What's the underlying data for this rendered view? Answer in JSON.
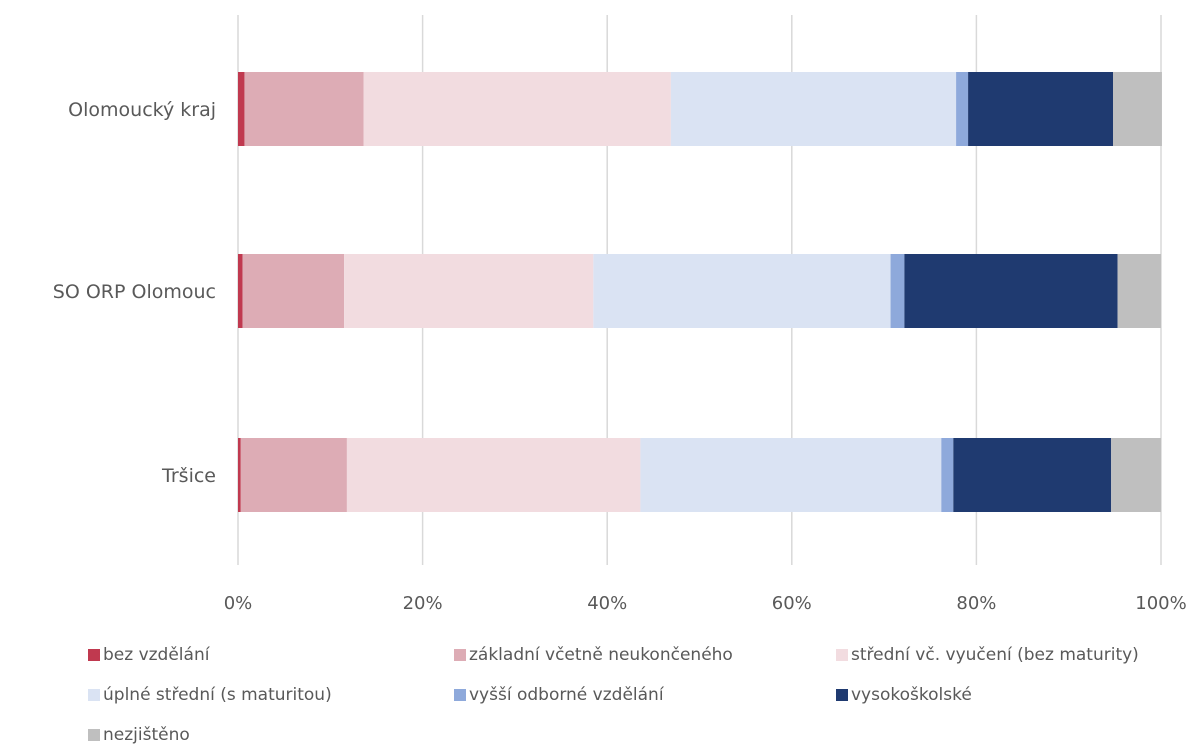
{
  "chart_data": {
    "type": "bar",
    "orientation": "horizontal",
    "stacked": "percent",
    "categories": [
      "Olomoucký kraj",
      "SO ORP Olomouc",
      "Tršice"
    ],
    "series": [
      {
        "name": "bez vzdělání",
        "color": "#C0394F",
        "values": [
          0.7,
          0.5,
          0.3
        ]
      },
      {
        "name": "základní včetně neukončeného",
        "color": "#DDACB5",
        "values": [
          12.9,
          11.0,
          11.5
        ]
      },
      {
        "name": "střední vč. vyučení (bez maturity)",
        "color": "#F2DCE0",
        "values": [
          33.3,
          27.0,
          31.8
        ]
      },
      {
        "name": "úplné střední (s maturitou)",
        "color": "#DAE3F3",
        "values": [
          30.9,
          32.2,
          32.6
        ]
      },
      {
        "name": "vyšší odborné vzdělání",
        "color": "#8EA9DB",
        "values": [
          1.3,
          1.5,
          1.3
        ]
      },
      {
        "name": "vysokoškolské",
        "color": "#1F3A70",
        "values": [
          15.7,
          23.1,
          17.1
        ]
      },
      {
        "name": "nezjištěno",
        "color": "#BFBFBF",
        "values": [
          5.3,
          4.7,
          5.4
        ]
      }
    ],
    "x_ticks": [
      "0%",
      "20%",
      "40%",
      "60%",
      "80%",
      "100%"
    ],
    "xlim": [
      0,
      100
    ],
    "grid": true,
    "legend_position": "bottom"
  }
}
